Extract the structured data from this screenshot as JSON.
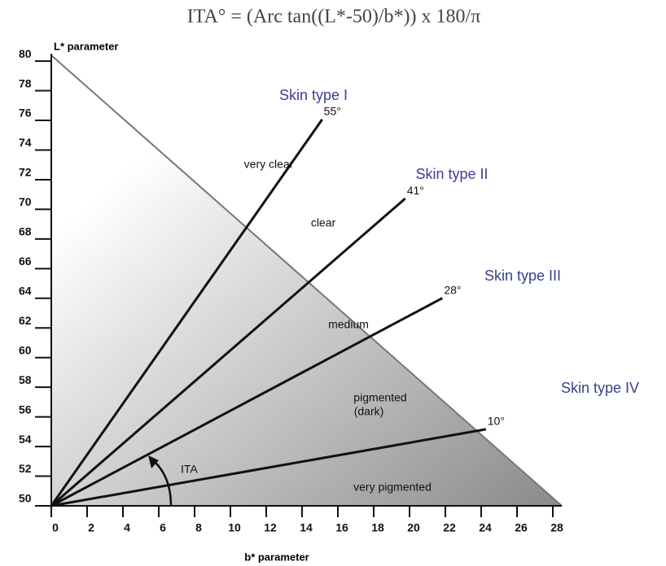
{
  "formula": "ITA° = (Arc tan((L*-50)/b*)) x 180/π",
  "y_axis": {
    "label": "L*  parameter",
    "lim": [
      50,
      80.5
    ],
    "ticks": [
      50,
      52,
      54,
      56,
      58,
      60,
      62,
      64,
      66,
      68,
      70,
      72,
      74,
      76,
      78,
      80
    ]
  },
  "x_axis": {
    "label": "b*  parameter",
    "lim": [
      0,
      28.5
    ],
    "ticks": [
      0,
      2,
      4,
      6,
      8,
      10,
      12,
      14,
      16,
      18,
      20,
      22,
      24,
      26,
      28
    ]
  },
  "rays": [
    {
      "value": 55,
      "label": "55°"
    },
    {
      "value": 41,
      "label": "41°"
    },
    {
      "value": 28,
      "label": "28°"
    },
    {
      "value": 10,
      "label": "10°"
    }
  ],
  "regions": [
    "very clear",
    "clear",
    "medium",
    "pigmented",
    "(dark)",
    "very pigmented"
  ],
  "skin_types": [
    "Skin type I",
    "Skin type II",
    "Skin type III",
    "Skin type IV"
  ],
  "arc_label": "ITA"
}
